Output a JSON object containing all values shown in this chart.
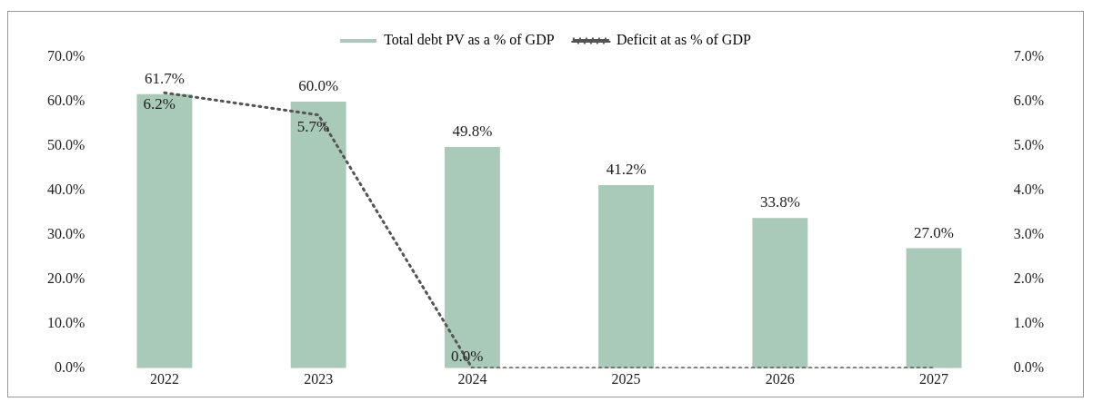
{
  "chart_data": {
    "type": "bar",
    "categories": [
      "2022",
      "2023",
      "2024",
      "2025",
      "2026",
      "2027"
    ],
    "series": [
      {
        "name": "Total debt PV as a % of GDP",
        "color": "#a9c9b9",
        "values": [
          61.7,
          60.0,
          49.8,
          41.2,
          33.8,
          27.0
        ],
        "value_labels": [
          "61.7%",
          "60.0%",
          "49.8%",
          "41.2%",
          "33.8%",
          "27.0%"
        ]
      },
      {
        "name": "Deficit at as % of GDP",
        "type": "line",
        "axis": "y2",
        "color": "#555555",
        "line_style": "dotted",
        "marker": "none",
        "values": [
          6.2,
          5.7,
          0.0,
          0.0,
          0.0,
          0.0
        ],
        "value_labels": [
          "6.2%",
          "5.7%",
          "0.0%",
          null,
          null,
          null
        ]
      }
    ],
    "ylim": [
      0,
      70
    ],
    "yticks": [
      {
        "value": 0,
        "label": "0.0%"
      },
      {
        "value": 10,
        "label": "10.0%"
      },
      {
        "value": 20,
        "label": "20.0%"
      },
      {
        "value": 30,
        "label": "30.0%"
      },
      {
        "value": 40,
        "label": "40.0%"
      },
      {
        "value": 50,
        "label": "50.0%"
      },
      {
        "value": 60,
        "label": "60.0%"
      },
      {
        "value": 70,
        "label": "70.0%"
      }
    ],
    "y2lim": [
      0,
      7
    ],
    "y2ticks": [
      {
        "value": 0,
        "label": "0.0%"
      },
      {
        "value": 1,
        "label": "1.0%"
      },
      {
        "value": 2,
        "label": "2.0%"
      },
      {
        "value": 3,
        "label": "3.0%"
      },
      {
        "value": 4,
        "label": "4.0%"
      },
      {
        "value": 5,
        "label": "5.0%"
      },
      {
        "value": 6,
        "label": "6.0%"
      },
      {
        "value": 7,
        "label": "7.0%"
      }
    ],
    "grid": false,
    "legend": "top"
  }
}
